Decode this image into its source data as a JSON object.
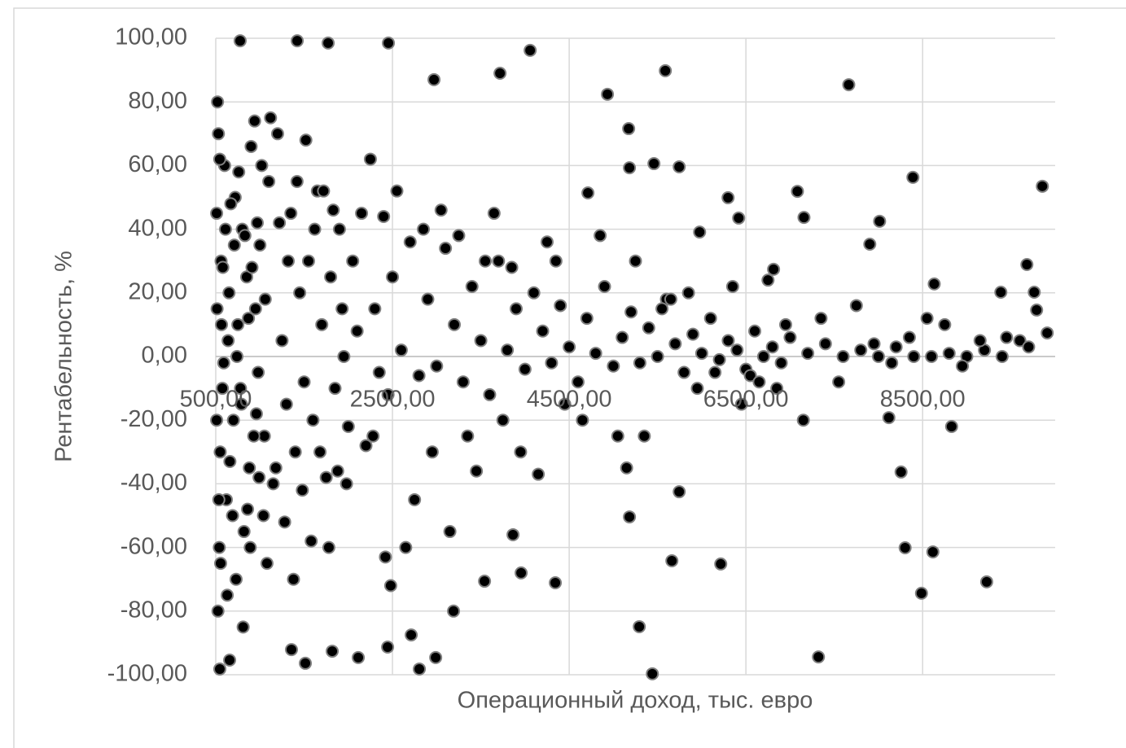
{
  "chart_data": {
    "type": "scatter",
    "x_label": "Операционный доход, тыс. евро",
    "y_label": "Рентабельность, %",
    "xlim": [
      500,
      10000
    ],
    "ylim": [
      -100,
      100
    ],
    "xticks": [
      {
        "value": 500,
        "label": "500,00"
      },
      {
        "value": 2500,
        "label": "2500,00"
      },
      {
        "value": 4500,
        "label": "4500,00"
      },
      {
        "value": 6500,
        "label": "6500,00"
      },
      {
        "value": 8500,
        "label": "8500,00"
      }
    ],
    "yticks": [
      {
        "value": -100,
        "label": "-100,00"
      },
      {
        "value": -80,
        "label": "-80,00"
      },
      {
        "value": -60,
        "label": "-60,00"
      },
      {
        "value": -40,
        "label": "-40,00"
      },
      {
        "value": -20,
        "label": "-20,00"
      },
      {
        "value": 0,
        "label": "0,00"
      },
      {
        "value": 20,
        "label": "20,00"
      },
      {
        "value": 40,
        "label": "40,00"
      },
      {
        "value": 60,
        "label": "60,00"
      },
      {
        "value": 80,
        "label": "80,00"
      },
      {
        "value": 100,
        "label": "100,00"
      }
    ],
    "grid": true,
    "series": [
      {
        "color": "#000000",
        "edge_color": "#7f7f7f",
        "x": [
          776,
          1422,
          1772,
          2454,
          4058,
          5588,
          3717,
          2970,
          7664,
          4933,
          5173,
          5459,
          5745,
          5182,
          8390,
          9855,
          7083,
          4712,
          6298,
          7157,
          6418,
          8013,
          5976,
          7902,
          9680,
          6813,
          8631,
          9763,
          9385,
          9910,
          9790,
          8828,
          8118,
          8256,
          8302,
          8616,
          8487,
          9225,
          7321,
          5441,
          5293,
          5745,
          5662,
          6215,
          5182,
          4343,
          3956,
          3864,
          3542,
          3191,
          2989,
          2804,
          2445,
          2712,
          2113,
          1818,
          1514,
          1357,
          546,
          657,
          520,
          530,
          540,
          510,
          550,
          560,
          600,
          620,
          650,
          700,
          720,
          750,
          780,
          800,
          820,
          850,
          880,
          900,
          950,
          980,
          1000,
          1050,
          1100,
          1150,
          1200,
          1250,
          1300,
          1350,
          1400,
          1450,
          1500,
          1550,
          1600,
          1650,
          1700,
          1750,
          1800,
          1850,
          1900,
          1950,
          2000,
          2050,
          2100,
          2200,
          2250,
          2300,
          2350,
          2400,
          2450,
          2500,
          2600,
          2700,
          2800,
          2900,
          3000,
          3100,
          3200,
          3300,
          3400,
          3500,
          3600,
          3700,
          3800,
          3900,
          4000,
          4100,
          4200,
          4300,
          4400,
          4500,
          4600,
          4700,
          4800,
          4900,
          5000,
          5100,
          5200,
          5300,
          5400,
          5500,
          5600,
          5700,
          5800,
          5900,
          6000,
          6100,
          6200,
          6300,
          6400,
          6500,
          6600,
          6700,
          6800,
          6900,
          7000,
          7200,
          7400,
          7600,
          7800,
          8000,
          8200,
          8400,
          8600,
          8800,
          9000,
          9200,
          9400,
          9600,
          510,
          515,
          525,
          535,
          545,
          555,
          565,
          575,
          580,
          590,
          610,
          630,
          640,
          660,
          670,
          690,
          710,
          730,
          740,
          760,
          790,
          810,
          830,
          860,
          870,
          890,
          910,
          930,
          940,
          960,
          970,
          990,
          1020,
          1040,
          1060,
          1080,
          1120,
          1180,
          1220,
          1280,
          1320,
          1380,
          1420,
          1480,
          1520,
          1580,
          1620,
          1680,
          1720,
          1780,
          1830,
          1880,
          1930,
          1980,
          2150,
          2280,
          2420,
          2480,
          2550,
          2650,
          2750,
          2850,
          2950,
          3050,
          3150,
          3250,
          3350,
          3450,
          3550,
          3650,
          3750,
          3850,
          3950,
          4150,
          4250,
          4350,
          4450,
          4650,
          4850,
          5050,
          5150,
          5250,
          5350,
          5550,
          5650,
          5850,
          5950,
          6150,
          6350,
          6450,
          6550,
          6650,
          6750,
          6850,
          6950,
          7150,
          7350,
          7550,
          7750,
          7950,
          8150,
          8350,
          8550,
          8750,
          8950,
          9150,
          9450,
          9700
        ],
        "values": [
          99.2,
          99.2,
          98.5,
          98.5,
          96.2,
          89.8,
          89,
          87,
          85.4,
          82.4,
          71.6,
          60.6,
          59.6,
          59.3,
          56.3,
          53.5,
          51.9,
          51.4,
          49.9,
          43.7,
          43.5,
          42.5,
          39.1,
          35.3,
          28.9,
          27.4,
          22.8,
          20.2,
          20.2,
          7.4,
          14.6,
          -22,
          -19.2,
          -36.3,
          -60.1,
          -61.4,
          -74.4,
          -70.8,
          -94.4,
          -99.7,
          -84.9,
          -42.5,
          -64.2,
          -65.2,
          -50.4,
          -71.1,
          -68,
          -56,
          -70.6,
          -80,
          -94.6,
          -98.2,
          -91.3,
          -87.5,
          -94.6,
          -92.6,
          -96.4,
          -92.1,
          -98.2,
          -95.4,
          80,
          70,
          -60,
          45,
          -30,
          30,
          60,
          -45,
          20,
          -20,
          50,
          10,
          -10,
          40,
          -55,
          25,
          -35,
          66,
          15,
          -5,
          35,
          -25,
          55,
          -40,
          70,
          5,
          -15,
          45,
          -30,
          20,
          -8,
          30,
          -20,
          52,
          10,
          -38,
          25,
          -10,
          40,
          0,
          -22,
          30,
          8,
          -28,
          62,
          15,
          -5,
          44,
          -12,
          25,
          2,
          36,
          -6,
          18,
          -3,
          34,
          10,
          -8,
          22,
          5,
          -12,
          30,
          2,
          15,
          -4,
          20,
          8,
          -2,
          16,
          3,
          -8,
          12,
          1,
          22,
          -3,
          6,
          14,
          -2,
          9,
          0,
          18,
          4,
          -5,
          7,
          1,
          12,
          -1,
          5,
          2,
          -4,
          8,
          0,
          3,
          -2,
          6,
          1,
          4,
          0,
          2,
          0,
          3,
          0,
          0,
          1,
          0,
          2,
          0,
          5,
          -20,
          15,
          -80,
          -45,
          62,
          -65,
          10,
          -10,
          28,
          -2,
          40,
          -75,
          5,
          -33,
          48,
          -50,
          35,
          -70,
          0,
          58,
          -15,
          -85,
          38,
          -48,
          12,
          -60,
          28,
          -25,
          74,
          -18,
          42,
          -38,
          60,
          -50,
          18,
          -65,
          75,
          -35,
          42,
          -52,
          30,
          -70,
          55,
          -42,
          68,
          -58,
          40,
          -30,
          52,
          -60,
          46,
          -36,
          15,
          -40,
          45,
          -25,
          -63,
          -72,
          52,
          -60,
          -45,
          40,
          -30,
          46,
          -55,
          38,
          -25,
          -36,
          30,
          45,
          -20,
          28,
          -30,
          -37,
          36,
          30,
          -15,
          -20,
          38,
          -25,
          -35,
          30,
          -25,
          15,
          18,
          20,
          -10,
          -5,
          22,
          -15,
          -6,
          -8,
          24,
          -10,
          10,
          -20,
          12,
          -8,
          16,
          4,
          -2,
          6,
          12,
          10,
          -3,
          5,
          6,
          3
        ]
      }
    ]
  }
}
